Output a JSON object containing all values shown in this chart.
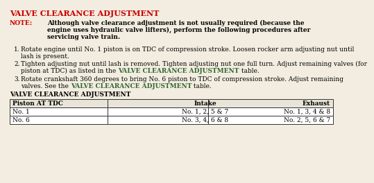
{
  "title": "VALVE CLEARANCE ADJUSTMENT",
  "title_color": "#cc0000",
  "note_label": "NOTE:",
  "note_label_color": "#cc0000",
  "note_lines": [
    "Although valve clearance adjustment is not usually required (because the",
    "engine uses hydraulic valve lifters), perform the following procedures after",
    "servicing valve train."
  ],
  "step1_lines": [
    "Rotate engine until No. 1 piston is on TDC of compression stroke. Loosen rocker arm adjusting nut until",
    "lash is present."
  ],
  "step2_parts": [
    [
      [
        "Tighten adjusting nut until lash is removed. Tighten adjusting nut one full turn. Adjust remaining valves (for",
        false
      ]
    ],
    [
      [
        "piston at TDC) as listed in the ",
        false
      ],
      [
        "VALVE CLEARANCE ADJUSTMENT",
        true
      ],
      [
        " table.",
        false
      ]
    ]
  ],
  "step3_parts": [
    [
      [
        "Rotate crankshaft 360 degrees to bring No. 6 piston to TDC of compression stroke. Adjust remaining",
        false
      ]
    ],
    [
      [
        "valves. See the ",
        false
      ],
      [
        "VALVE CLEARANCE ADJUSTMENT",
        true
      ],
      [
        " table.",
        false
      ]
    ]
  ],
  "link_color": "#336633",
  "table_title": "VALVE CLEARANCE ADJUSTMENT",
  "table_headers": [
    "Piston AT TDC",
    "Intake",
    "Exhaust"
  ],
  "table_rows": [
    [
      "No. 1",
      "No. 1, 2, 5 & 7",
      "No. 1, 3, 4 & 8"
    ],
    [
      "No. 6",
      "No. 3, 4, 6 & 8",
      "No. 2, 5, 6 & 7"
    ]
  ],
  "bg_color": "#f2ede0",
  "text_color": "#000000",
  "body_fontsize": 6.5,
  "title_fontsize": 8.0,
  "table_fontsize": 6.5
}
